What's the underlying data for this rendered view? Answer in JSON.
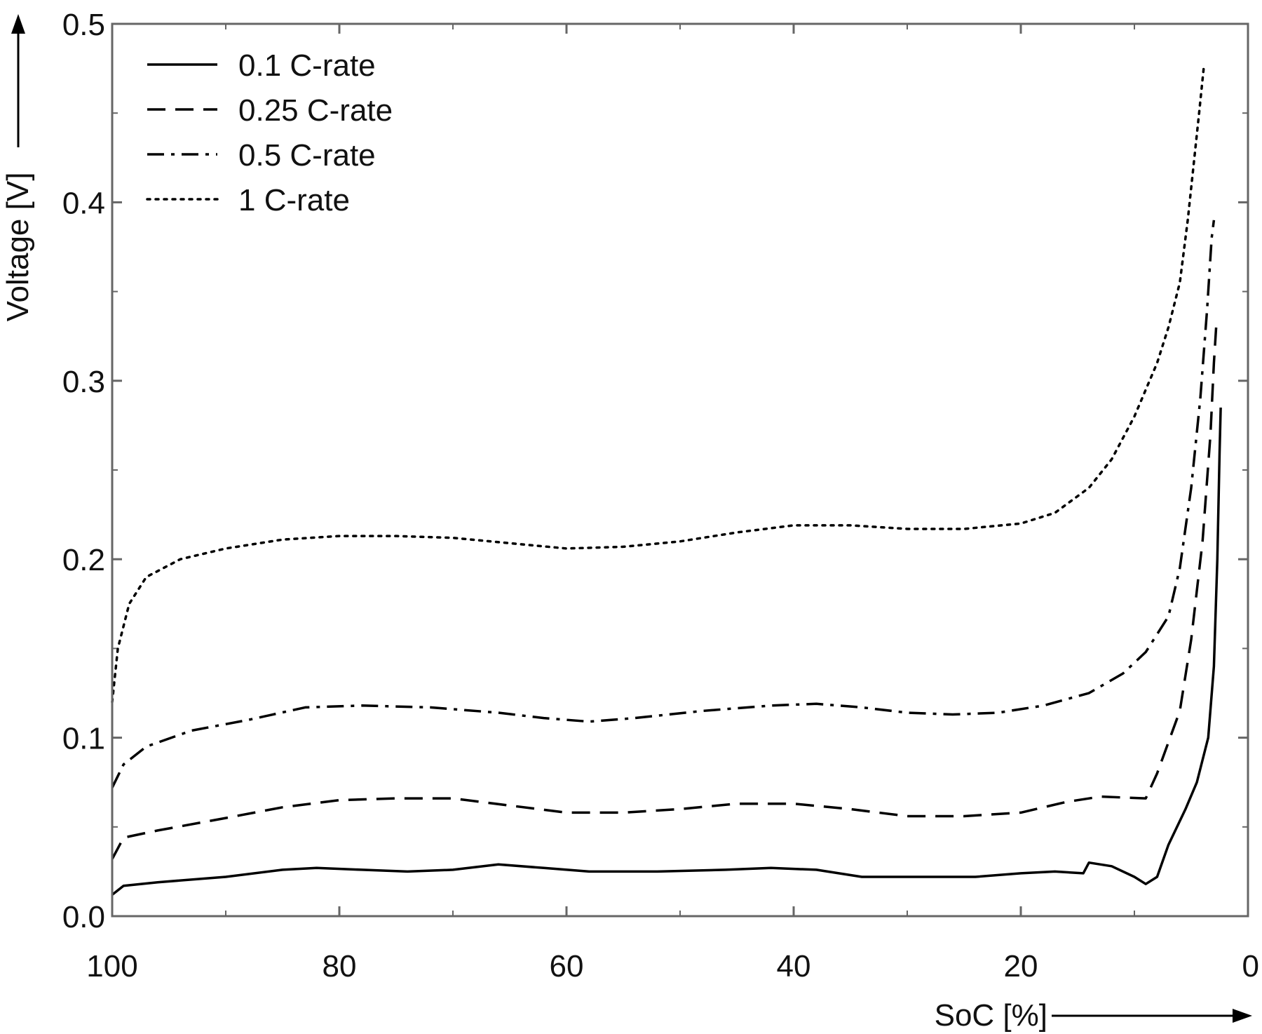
{
  "chart_data": {
    "type": "line",
    "xlabel": "SoC [%]",
    "ylabel": "Voltage [V]",
    "xlim": [
      100,
      0
    ],
    "ylim": [
      0,
      0.5
    ],
    "x_reversed": true,
    "xticks": [
      100,
      80,
      60,
      40,
      20,
      0
    ],
    "yticks": [
      0.0,
      0.1,
      0.2,
      0.3,
      0.4,
      0.5
    ],
    "xtick_labels": [
      "100",
      "80",
      "60",
      "40",
      "20",
      "0"
    ],
    "ytick_labels": [
      "0.0",
      "0.1",
      "0.2",
      "0.3",
      "0.4",
      "0.5"
    ],
    "grid": false,
    "legend_position": "top-left",
    "series": [
      {
        "name": "0.1 C-rate",
        "style": "solid",
        "color": "#000000",
        "points": [
          [
            100,
            0.012
          ],
          [
            99,
            0.017
          ],
          [
            96,
            0.019
          ],
          [
            90,
            0.022
          ],
          [
            85,
            0.026
          ],
          [
            82,
            0.027
          ],
          [
            78,
            0.026
          ],
          [
            74,
            0.025
          ],
          [
            70,
            0.026
          ],
          [
            66,
            0.029
          ],
          [
            62,
            0.027
          ],
          [
            58,
            0.025
          ],
          [
            52,
            0.025
          ],
          [
            46,
            0.026
          ],
          [
            42,
            0.027
          ],
          [
            38,
            0.026
          ],
          [
            34,
            0.022
          ],
          [
            30,
            0.022
          ],
          [
            24,
            0.022
          ],
          [
            20,
            0.024
          ],
          [
            17,
            0.025
          ],
          [
            14.5,
            0.024
          ],
          [
            14,
            0.03
          ],
          [
            12,
            0.028
          ],
          [
            10,
            0.022
          ],
          [
            9,
            0.018
          ],
          [
            8,
            0.022
          ],
          [
            7,
            0.04
          ],
          [
            5.5,
            0.06
          ],
          [
            4.5,
            0.075
          ],
          [
            3.5,
            0.1
          ],
          [
            3,
            0.14
          ],
          [
            2.7,
            0.2
          ],
          [
            2.5,
            0.26
          ],
          [
            2.4,
            0.285
          ]
        ]
      },
      {
        "name": "0.25 C-rate",
        "style": "dashed",
        "color": "#000000",
        "points": [
          [
            100,
            0.032
          ],
          [
            99,
            0.044
          ],
          [
            96,
            0.048
          ],
          [
            90,
            0.055
          ],
          [
            85,
            0.061
          ],
          [
            80,
            0.065
          ],
          [
            75,
            0.066
          ],
          [
            70,
            0.066
          ],
          [
            65,
            0.062
          ],
          [
            60,
            0.058
          ],
          [
            55,
            0.058
          ],
          [
            50,
            0.06
          ],
          [
            45,
            0.063
          ],
          [
            40,
            0.063
          ],
          [
            35,
            0.06
          ],
          [
            30,
            0.056
          ],
          [
            25,
            0.056
          ],
          [
            20,
            0.058
          ],
          [
            16,
            0.064
          ],
          [
            13,
            0.067
          ],
          [
            9,
            0.066
          ],
          [
            8,
            0.08
          ],
          [
            6,
            0.115
          ],
          [
            5,
            0.155
          ],
          [
            4,
            0.21
          ],
          [
            3.3,
            0.27
          ],
          [
            3,
            0.31
          ],
          [
            2.8,
            0.33
          ]
        ]
      },
      {
        "name": "0.5 C-rate",
        "style": "dashdot",
        "color": "#000000",
        "points": [
          [
            100,
            0.072
          ],
          [
            99,
            0.085
          ],
          [
            97,
            0.095
          ],
          [
            93,
            0.104
          ],
          [
            88,
            0.11
          ],
          [
            83,
            0.117
          ],
          [
            78,
            0.118
          ],
          [
            72,
            0.117
          ],
          [
            66,
            0.114
          ],
          [
            62,
            0.111
          ],
          [
            58,
            0.109
          ],
          [
            54,
            0.111
          ],
          [
            48,
            0.115
          ],
          [
            42,
            0.118
          ],
          [
            38,
            0.119
          ],
          [
            34,
            0.117
          ],
          [
            30,
            0.114
          ],
          [
            26,
            0.113
          ],
          [
            22,
            0.114
          ],
          [
            18,
            0.118
          ],
          [
            14,
            0.125
          ],
          [
            11,
            0.136
          ],
          [
            9,
            0.148
          ],
          [
            7,
            0.168
          ],
          [
            6,
            0.195
          ],
          [
            5,
            0.24
          ],
          [
            4.2,
            0.29
          ],
          [
            3.6,
            0.34
          ],
          [
            3.2,
            0.38
          ],
          [
            3,
            0.39
          ]
        ]
      },
      {
        "name": "1 C-rate",
        "style": "dotted",
        "color": "#000000",
        "points": [
          [
            100,
            0.12
          ],
          [
            99.5,
            0.15
          ],
          [
            98.5,
            0.175
          ],
          [
            97,
            0.19
          ],
          [
            94,
            0.2
          ],
          [
            90,
            0.206
          ],
          [
            85,
            0.211
          ],
          [
            80,
            0.213
          ],
          [
            75,
            0.213
          ],
          [
            70,
            0.212
          ],
          [
            65,
            0.209
          ],
          [
            60,
            0.206
          ],
          [
            55,
            0.207
          ],
          [
            50,
            0.21
          ],
          [
            45,
            0.215
          ],
          [
            40,
            0.219
          ],
          [
            35,
            0.219
          ],
          [
            30,
            0.217
          ],
          [
            25,
            0.217
          ],
          [
            20,
            0.22
          ],
          [
            17,
            0.226
          ],
          [
            14,
            0.24
          ],
          [
            12,
            0.256
          ],
          [
            10,
            0.28
          ],
          [
            8,
            0.31
          ],
          [
            7,
            0.33
          ],
          [
            6,
            0.355
          ],
          [
            5.3,
            0.39
          ],
          [
            4.8,
            0.42
          ],
          [
            4.3,
            0.45
          ],
          [
            3.9,
            0.475
          ]
        ]
      }
    ]
  }
}
